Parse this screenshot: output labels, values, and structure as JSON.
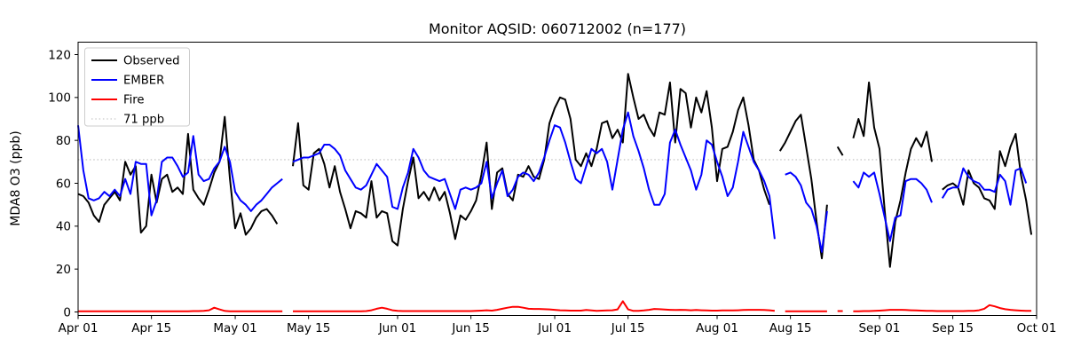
{
  "window": {
    "title": "Monitor AQSID: 060712002 (n=177)"
  },
  "legend": {
    "items": [
      {
        "label": "Observed",
        "color": "#000000",
        "style": "solid"
      },
      {
        "label": "EMBER",
        "color": "#0000ff",
        "style": "solid"
      },
      {
        "label": "Fire",
        "color": "#ff0000",
        "style": "solid"
      },
      {
        "label": "71 ppb",
        "color": "#c9c9c9",
        "style": "dotted"
      }
    ],
    "position": "upper left"
  },
  "chart_data": {
    "type": "line",
    "title": "Monitor AQSID: 060712002 (n=177)",
    "xlabel": "",
    "ylabel": "MDA8 O3 (ppb)",
    "grid": false,
    "ylim": [
      -2,
      126
    ],
    "yticks": [
      0,
      20,
      40,
      60,
      80,
      100,
      120
    ],
    "x_unit": "days from Apr 01",
    "n_days": 184,
    "xticks": [
      {
        "day": 0,
        "label": "Apr 01"
      },
      {
        "day": 14,
        "label": "Apr 15"
      },
      {
        "day": 30,
        "label": "May 01"
      },
      {
        "day": 44,
        "label": "May 15"
      },
      {
        "day": 61,
        "label": "Jun 01"
      },
      {
        "day": 75,
        "label": "Jun 15"
      },
      {
        "day": 91,
        "label": "Jul 01"
      },
      {
        "day": 105,
        "label": "Jul 15"
      },
      {
        "day": 122,
        "label": "Aug 01"
      },
      {
        "day": 136,
        "label": "Aug 15"
      },
      {
        "day": 153,
        "label": "Sep 01"
      },
      {
        "day": 167,
        "label": "Sep 15"
      },
      {
        "day": 183,
        "label": "Oct 01"
      }
    ],
    "threshold": {
      "value": 71,
      "label": "71 ppb",
      "color": "#c9c9c9",
      "style": "dotted"
    },
    "series": [
      {
        "name": "Observed",
        "color": "#000000",
        "values": [
          55,
          54,
          51,
          45,
          42,
          50,
          53,
          56,
          52,
          70,
          64,
          68,
          37,
          40,
          64,
          51,
          62,
          64,
          56,
          58,
          55,
          83,
          57,
          53,
          50,
          57,
          65,
          70,
          91,
          62,
          39,
          46,
          36,
          39,
          44,
          47,
          48,
          45,
          41,
          null,
          null,
          68,
          88,
          59,
          57,
          74,
          76,
          69,
          58,
          68,
          56,
          48,
          39,
          47,
          46,
          44,
          61,
          44,
          47,
          46,
          33,
          31,
          48,
          61,
          72,
          53,
          56,
          52,
          58,
          52,
          56,
          46,
          34,
          45,
          43,
          47,
          52,
          64,
          79,
          48,
          65,
          67,
          55,
          52,
          64,
          63,
          68,
          63,
          62,
          71,
          88,
          95,
          100,
          99,
          90,
          71,
          68,
          74,
          68,
          76,
          88,
          89,
          81,
          85,
          79,
          111,
          100,
          90,
          92,
          86,
          82,
          93,
          92,
          107,
          79,
          104,
          102,
          86,
          100,
          93,
          103,
          86,
          61,
          76,
          77,
          84,
          94,
          100,
          87,
          71,
          66,
          57,
          50,
          null,
          75,
          79,
          84,
          89,
          92,
          77,
          62,
          42,
          25,
          50,
          null,
          77,
          73,
          null,
          81,
          90,
          82,
          107,
          86,
          76,
          47,
          21,
          42,
          52,
          65,
          76,
          81,
          77,
          84,
          70,
          null,
          57,
          59,
          60,
          58,
          50,
          66,
          60,
          58,
          53,
          52,
          48,
          75,
          68,
          77,
          83,
          64,
          52,
          36,
          null
        ]
      },
      {
        "name": "EMBER",
        "color": "#0000ff",
        "values": [
          87,
          66,
          53,
          52,
          53,
          56,
          54,
          57,
          54,
          62,
          55,
          70,
          69,
          69,
          45,
          52,
          70,
          72,
          72,
          68,
          63,
          65,
          82,
          64,
          61,
          62,
          67,
          70,
          77,
          70,
          56,
          52,
          50,
          47,
          50,
          52,
          55,
          58,
          60,
          62,
          null,
          70,
          71,
          72,
          72,
          73,
          74,
          78,
          78,
          76,
          73,
          66,
          62,
          58,
          57,
          59,
          64,
          69,
          66,
          63,
          49,
          48,
          58,
          65,
          76,
          72,
          66,
          63,
          62,
          61,
          62,
          55,
          48,
          57,
          58,
          57,
          58,
          60,
          70,
          53,
          60,
          66,
          54,
          57,
          63,
          65,
          64,
          61,
          65,
          72,
          80,
          87,
          86,
          79,
          70,
          62,
          60,
          68,
          76,
          74,
          76,
          70,
          57,
          71,
          85,
          93,
          82,
          75,
          67,
          57,
          50,
          50,
          55,
          79,
          85,
          78,
          72,
          66,
          57,
          64,
          80,
          78,
          70,
          63,
          54,
          58,
          70,
          84,
          77,
          70,
          66,
          61,
          54,
          34,
          null,
          64,
          65,
          63,
          59,
          51,
          48,
          40,
          28,
          47,
          null,
          null,
          null,
          null,
          61,
          58,
          65,
          63,
          65,
          55,
          44,
          33,
          44,
          45,
          61,
          62,
          62,
          60,
          57,
          51,
          null,
          53,
          57,
          58,
          58,
          67,
          63,
          61,
          60,
          57,
          57,
          56,
          64,
          61,
          50,
          66,
          67,
          60,
          null,
          null
        ]
      },
      {
        "name": "Fire",
        "color": "#ff0000",
        "values": [
          0.3,
          0.3,
          0.3,
          0.3,
          0.3,
          0.3,
          0.3,
          0.3,
          0.3,
          0.3,
          0.3,
          0.3,
          0.3,
          0.3,
          0.3,
          0.3,
          0.3,
          0.3,
          0.3,
          0.3,
          0.3,
          0.3,
          0.4,
          0.4,
          0.5,
          0.8,
          2.0,
          1.2,
          0.5,
          0.3,
          0.3,
          0.3,
          0.3,
          0.3,
          0.3,
          0.3,
          0.3,
          0.3,
          0.3,
          0.3,
          null,
          0.3,
          0.3,
          0.3,
          0.3,
          0.3,
          0.3,
          0.3,
          0.3,
          0.3,
          0.3,
          0.3,
          0.3,
          0.3,
          0.3,
          0.4,
          0.8,
          1.5,
          2.0,
          1.5,
          0.8,
          0.5,
          0.4,
          0.4,
          0.4,
          0.4,
          0.4,
          0.4,
          0.4,
          0.4,
          0.4,
          0.4,
          0.4,
          0.4,
          0.4,
          0.4,
          0.5,
          0.6,
          0.8,
          0.6,
          1.0,
          1.5,
          2.0,
          2.4,
          2.4,
          2.0,
          1.5,
          1.4,
          1.4,
          1.3,
          1.2,
          1.0,
          0.8,
          0.7,
          0.6,
          0.6,
          0.6,
          0.9,
          0.7,
          0.5,
          0.6,
          0.7,
          0.8,
          1.2,
          5.0,
          1.2,
          0.5,
          0.5,
          0.7,
          1.0,
          1.4,
          1.3,
          1.1,
          1.0,
          0.9,
          1.0,
          0.9,
          0.8,
          0.9,
          0.8,
          0.7,
          0.6,
          0.6,
          0.7,
          0.7,
          0.7,
          0.8,
          0.9,
          1.0,
          1.0,
          1.0,
          0.9,
          0.8,
          0.5,
          null,
          0.3,
          0.3,
          0.3,
          0.3,
          0.3,
          0.3,
          0.3,
          0.3,
          0.3,
          null,
          0.4,
          0.4,
          null,
          0.3,
          0.3,
          0.4,
          0.4,
          0.5,
          0.6,
          0.8,
          1.0,
          1.0,
          1.0,
          0.9,
          0.8,
          0.7,
          0.6,
          0.5,
          0.5,
          0.4,
          0.4,
          0.4,
          0.4,
          0.4,
          0.4,
          0.5,
          0.5,
          0.8,
          1.5,
          3.2,
          2.6,
          1.8,
          1.3,
          1.0,
          0.8,
          0.6,
          0.5,
          0.5,
          null
        ]
      }
    ]
  }
}
